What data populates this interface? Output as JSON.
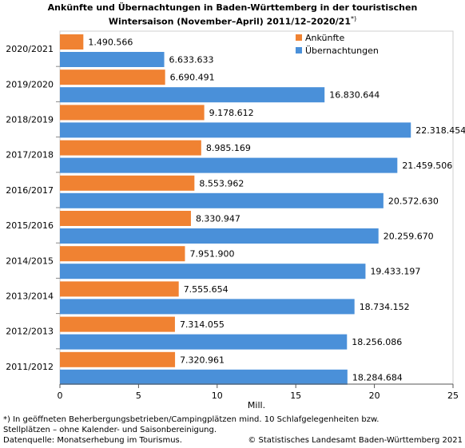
{
  "chart_data": {
    "type": "bar",
    "orientation": "horizontal",
    "title_line1": "Ankünfte und Übernachtungen in Baden-Württemberg in der touristischen",
    "title_line2": "Wintersaison (November–April) 2011/12–2020/21",
    "title_note": "*)",
    "xlabel": "Mill.",
    "ylabel": "",
    "xlim": [
      0,
      25
    ],
    "xticks": [
      0,
      5,
      10,
      15,
      20,
      25
    ],
    "legend_position": "top-right",
    "grid": false,
    "categories": [
      "2020/2021",
      "2019/2020",
      "2018/2019",
      "2017/2018",
      "2016/2017",
      "2015/2016",
      "2014/2015",
      "2013/2014",
      "2012/2013",
      "2011/2012"
    ],
    "series": [
      {
        "name": "Ankünfte",
        "color": "#f08232",
        "values": [
          1.490566,
          6.690491,
          9.178612,
          8.985169,
          8.553962,
          8.330947,
          7.9519,
          7.555654,
          7.314055,
          7.320961
        ],
        "labels": [
          "1.490.566",
          "6.690.491",
          "9.178.612",
          "8.985.169",
          "8.553.962",
          "8.330.947",
          "7.951.900",
          "7.555.654",
          "7.314.055",
          "7.320.961"
        ]
      },
      {
        "name": "Übernachtungen",
        "color": "#4a90d9",
        "values": [
          6.633633,
          16.830644,
          22.318454,
          21.459506,
          20.57263,
          20.25967,
          19.433197,
          18.734152,
          18.256086,
          18.284684
        ],
        "labels": [
          "6.633.633",
          "16.830.644",
          "22.318.454",
          "21.459.506",
          "20.572.630",
          "20.259.670",
          "19.433.197",
          "18.734.152",
          "18.256.086",
          "18.284.684"
        ]
      }
    ]
  },
  "footer": {
    "note_line1": "*) In geöffneten Beherbergungsbetrieben/Campingplätzen mind. 10 Schlafgelegenheiten bzw.",
    "note_line2": "Stellplätzen – ohne Kalender- und Saisonbereinigung.",
    "source": "Datenquelle: Monatserhebung im Tourismus.",
    "copyright": "© Statistisches Landesamt Baden-Württemberg 2021"
  }
}
